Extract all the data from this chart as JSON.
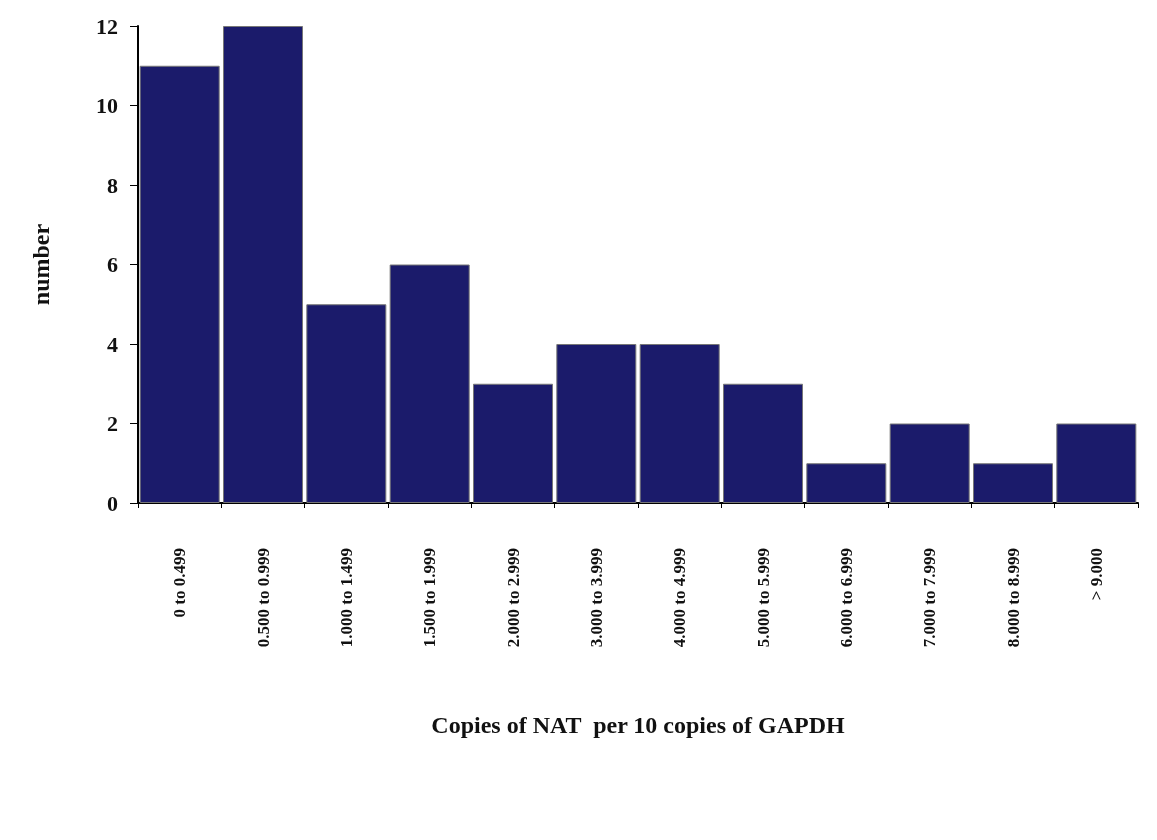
{
  "chart_data": {
    "type": "bar",
    "xlabel": "Copies of NAT  per 10 copies of GAPDH",
    "ylabel": "number",
    "categories": [
      "0 to 0.499",
      "0.500 to 0.999",
      "1.000 to 1.499",
      "1.500 to 1.999",
      "2.000 to 2.999",
      "3.000 to 3.999",
      "4.000 to 4.999",
      "5.000 to 5.999",
      "6.000 to 6.999",
      "7.000 to 7.999",
      "8.000 to 8.999",
      "> 9.000"
    ],
    "values": [
      11,
      12,
      5,
      6,
      3,
      4,
      4,
      3,
      1,
      2,
      1,
      2
    ],
    "color": "#1b1b6b",
    "ylim": [
      0,
      12
    ],
    "yticks": [
      0,
      2,
      4,
      6,
      8,
      10,
      12
    ],
    "grid": false
  }
}
